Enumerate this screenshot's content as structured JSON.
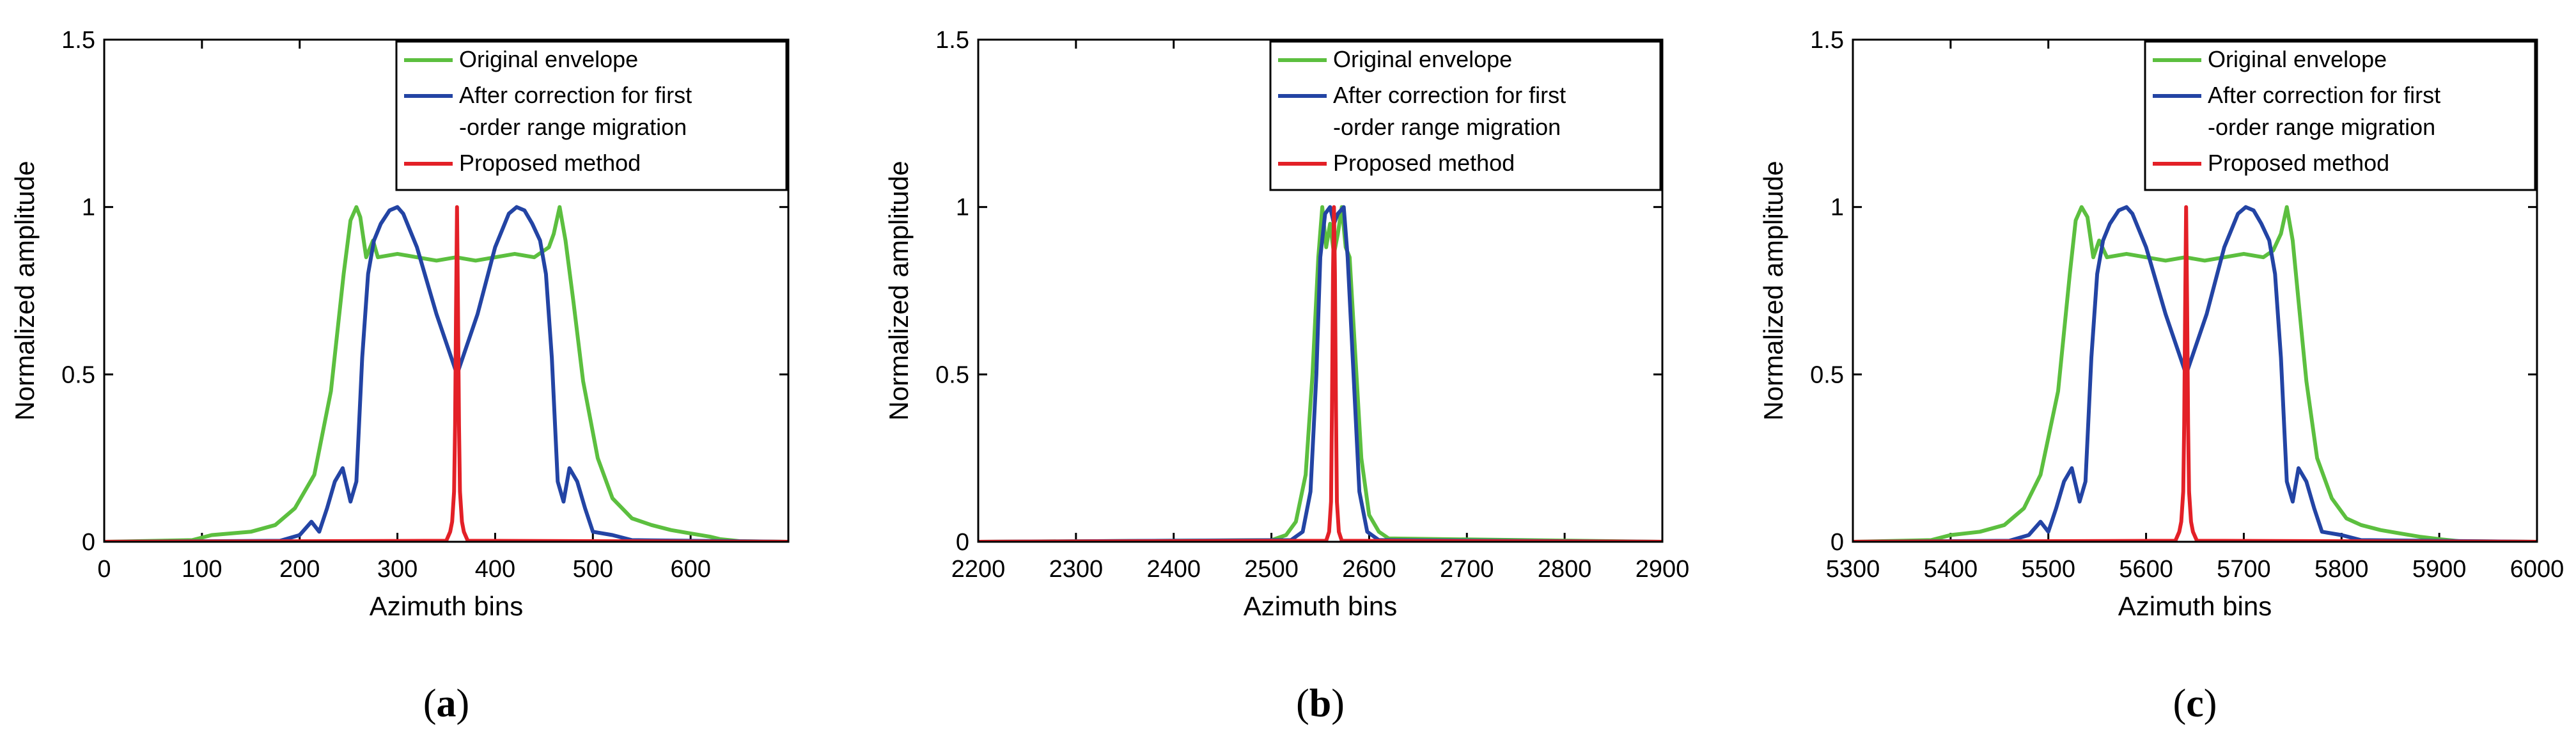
{
  "chart_data": [
    {
      "type": "line",
      "panel_label": "a",
      "xlabel": "Azimuth bins",
      "ylabel": "Normalized amplitude",
      "xlim": [
        0,
        700
      ],
      "ylim": [
        0,
        1.5
      ],
      "xticks": [
        0,
        100,
        200,
        300,
        400,
        500,
        600
      ],
      "yticks": [
        0,
        0.5,
        1,
        1.5
      ],
      "xtick_labels": [
        "0",
        "100",
        "200",
        "300",
        "400",
        "500",
        "600"
      ],
      "ytick_labels": [
        "0",
        "0.5",
        "1",
        "1.5"
      ],
      "legend_position": "top-right",
      "legend": [
        {
          "series": 0,
          "lines": [
            "Original envelope"
          ]
        },
        {
          "series": 1,
          "lines": [
            "After correction for first",
            "-order range migration"
          ]
        },
        {
          "series": 2,
          "lines": [
            "Proposed method"
          ]
        }
      ],
      "series": [
        {
          "name": "Original envelope",
          "color": "#5cbf3f",
          "x": [
            0,
            90,
            110,
            150,
            175,
            195,
            215,
            232,
            245,
            252,
            258,
            262,
            268,
            275,
            280,
            300,
            320,
            340,
            360,
            380,
            400,
            420,
            440,
            450,
            455,
            460,
            466,
            472,
            480,
            490,
            505,
            520,
            540,
            560,
            580,
            600,
            620,
            630,
            650,
            700
          ],
          "y": [
            0,
            0.005,
            0.02,
            0.03,
            0.05,
            0.1,
            0.2,
            0.45,
            0.8,
            0.96,
            1.0,
            0.97,
            0.85,
            0.9,
            0.85,
            0.86,
            0.85,
            0.84,
            0.85,
            0.84,
            0.85,
            0.86,
            0.85,
            0.87,
            0.88,
            0.92,
            1.0,
            0.9,
            0.72,
            0.48,
            0.25,
            0.13,
            0.07,
            0.05,
            0.035,
            0.025,
            0.015,
            0.008,
            0.002,
            0
          ]
        },
        {
          "name": "After correction for first-order range migration",
          "color": "#2344a4",
          "x": [
            0,
            180,
            200,
            212,
            220,
            228,
            236,
            244,
            252,
            258,
            264,
            270,
            276,
            283,
            292,
            300,
            306,
            320,
            340,
            361,
            382,
            400,
            414,
            422,
            430,
            438,
            446,
            452,
            458,
            464,
            470,
            476,
            484,
            492,
            500,
            520,
            540,
            700
          ],
          "y": [
            0,
            0.003,
            0.02,
            0.06,
            0.03,
            0.1,
            0.18,
            0.22,
            0.12,
            0.18,
            0.55,
            0.8,
            0.9,
            0.95,
            0.99,
            1.0,
            0.98,
            0.88,
            0.68,
            0.5,
            0.68,
            0.88,
            0.98,
            1.0,
            0.99,
            0.95,
            0.9,
            0.8,
            0.55,
            0.18,
            0.12,
            0.22,
            0.18,
            0.1,
            0.03,
            0.02,
            0.005,
            0
          ]
        },
        {
          "name": "Proposed method",
          "color": "#e32027",
          "x": [
            0,
            350,
            354,
            356,
            358,
            359,
            360,
            361,
            362,
            363,
            364,
            366,
            368,
            372,
            700
          ],
          "y": [
            0,
            0.003,
            0.03,
            0.06,
            0.15,
            0.35,
            0.7,
            1.0,
            0.7,
            0.35,
            0.15,
            0.06,
            0.03,
            0.003,
            0
          ]
        }
      ]
    },
    {
      "type": "line",
      "panel_label": "b",
      "xlabel": "Azimuth bins",
      "ylabel": "Normalized amplitude",
      "xlim": [
        2200,
        2900
      ],
      "ylim": [
        0,
        1.5
      ],
      "xticks": [
        2200,
        2300,
        2400,
        2500,
        2600,
        2700,
        2800,
        2900
      ],
      "yticks": [
        0,
        0.5,
        1,
        1.5
      ],
      "xtick_labels": [
        "2200",
        "2300",
        "2400",
        "2500",
        "2600",
        "2700",
        "2800",
        "2900"
      ],
      "ytick_labels": [
        "0",
        "0.5",
        "1",
        "1.5"
      ],
      "legend_position": "top-right",
      "legend": [
        {
          "series": 0,
          "lines": [
            "Original envelope"
          ]
        },
        {
          "series": 1,
          "lines": [
            "After correction for first",
            "-order range migration"
          ]
        },
        {
          "series": 2,
          "lines": [
            "Proposed method"
          ]
        }
      ],
      "series": [
        {
          "name": "Original envelope",
          "color": "#5cbf3f",
          "x": [
            2200,
            2500,
            2515,
            2525,
            2535,
            2542,
            2548,
            2552,
            2556,
            2560,
            2564,
            2568,
            2572,
            2576,
            2580,
            2585,
            2592,
            2600,
            2610,
            2620,
            2900
          ],
          "y": [
            0,
            0.005,
            0.02,
            0.06,
            0.2,
            0.5,
            0.85,
            1.0,
            0.88,
            0.95,
            0.86,
            0.92,
            1.0,
            0.88,
            0.85,
            0.6,
            0.25,
            0.08,
            0.03,
            0.01,
            0
          ]
        },
        {
          "name": "After correction for first-order range migration",
          "color": "#2344a4",
          "x": [
            2200,
            2520,
            2532,
            2540,
            2546,
            2550,
            2555,
            2560,
            2564,
            2568,
            2574,
            2578,
            2584,
            2590,
            2598,
            2610,
            2900
          ],
          "y": [
            0,
            0.005,
            0.03,
            0.15,
            0.5,
            0.85,
            0.98,
            1.0,
            0.95,
            0.98,
            1.0,
            0.85,
            0.5,
            0.15,
            0.03,
            0.005,
            0
          ]
        },
        {
          "name": "Proposed method",
          "color": "#e32027",
          "x": [
            2200,
            2556,
            2559,
            2561,
            2562,
            2563,
            2564,
            2565,
            2566,
            2567,
            2569,
            2572,
            2900
          ],
          "y": [
            0,
            0.003,
            0.03,
            0.12,
            0.4,
            0.8,
            1.0,
            0.8,
            0.4,
            0.12,
            0.03,
            0.003,
            0
          ]
        }
      ]
    },
    {
      "type": "line",
      "panel_label": "c",
      "xlabel": "Azimuth bins",
      "ylabel": "Normalized amplitude",
      "xlim": [
        5300,
        6000
      ],
      "ylim": [
        0,
        1.5
      ],
      "xticks": [
        5300,
        5400,
        5500,
        5600,
        5700,
        5800,
        5900,
        6000
      ],
      "yticks": [
        0,
        0.5,
        1,
        1.5
      ],
      "xtick_labels": [
        "5300",
        "5400",
        "5500",
        "5600",
        "5700",
        "5800",
        "5900",
        "6000"
      ],
      "ytick_labels": [
        "0",
        "0.5",
        "1",
        "1.5"
      ],
      "legend_position": "top-right",
      "legend": [
        {
          "series": 0,
          "lines": [
            "Original envelope"
          ]
        },
        {
          "series": 1,
          "lines": [
            "After correction for first",
            "-order range migration"
          ]
        },
        {
          "series": 2,
          "lines": [
            "Proposed method"
          ]
        }
      ],
      "series": [
        {
          "name": "Original envelope",
          "color": "#5cbf3f",
          "x": [
            5300,
            5380,
            5400,
            5430,
            5455,
            5475,
            5492,
            5510,
            5522,
            5528,
            5534,
            5540,
            5546,
            5552,
            5560,
            5580,
            5600,
            5620,
            5640,
            5660,
            5680,
            5700,
            5720,
            5730,
            5738,
            5744,
            5750,
            5756,
            5764,
            5775,
            5790,
            5805,
            5820,
            5840,
            5860,
            5880,
            5900,
            5920,
            6000
          ],
          "y": [
            0,
            0.005,
            0.02,
            0.03,
            0.05,
            0.1,
            0.2,
            0.45,
            0.8,
            0.96,
            1.0,
            0.97,
            0.85,
            0.9,
            0.85,
            0.86,
            0.85,
            0.84,
            0.85,
            0.84,
            0.85,
            0.86,
            0.85,
            0.87,
            0.92,
            1.0,
            0.9,
            0.72,
            0.48,
            0.25,
            0.13,
            0.07,
            0.05,
            0.035,
            0.025,
            0.015,
            0.008,
            0.002,
            0
          ]
        },
        {
          "name": "After correction for first-order range migration",
          "color": "#2344a4",
          "x": [
            5300,
            5460,
            5480,
            5492,
            5500,
            5508,
            5516,
            5524,
            5532,
            5538,
            5544,
            5550,
            5556,
            5563,
            5572,
            5580,
            5586,
            5600,
            5620,
            5641,
            5662,
            5680,
            5694,
            5702,
            5710,
            5718,
            5726,
            5732,
            5738,
            5744,
            5750,
            5756,
            5764,
            5772,
            5780,
            5800,
            5820,
            6000
          ],
          "y": [
            0,
            0.003,
            0.02,
            0.06,
            0.03,
            0.1,
            0.18,
            0.22,
            0.12,
            0.18,
            0.55,
            0.8,
            0.9,
            0.95,
            0.99,
            1.0,
            0.98,
            0.88,
            0.68,
            0.5,
            0.68,
            0.88,
            0.98,
            1.0,
            0.99,
            0.95,
            0.9,
            0.8,
            0.55,
            0.18,
            0.12,
            0.22,
            0.18,
            0.1,
            0.03,
            0.02,
            0.005,
            0
          ]
        },
        {
          "name": "Proposed method",
          "color": "#e32027",
          "x": [
            5300,
            5630,
            5634,
            5636,
            5638,
            5639,
            5640,
            5641,
            5642,
            5643,
            5644,
            5646,
            5648,
            5652,
            6000
          ],
          "y": [
            0,
            0.003,
            0.03,
            0.06,
            0.15,
            0.35,
            0.7,
            1.0,
            0.7,
            0.35,
            0.15,
            0.06,
            0.03,
            0.003,
            0
          ]
        }
      ]
    }
  ]
}
